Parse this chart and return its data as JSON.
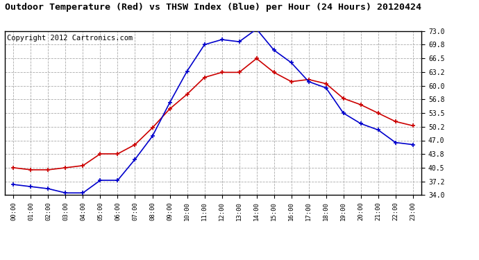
{
  "title": "Outdoor Temperature (Red) vs THSW Index (Blue) per Hour (24 Hours) 20120424",
  "copyright": "Copyright 2012 Cartronics.com",
  "hours": [
    "00:00",
    "01:00",
    "02:00",
    "03:00",
    "04:00",
    "05:00",
    "06:00",
    "07:00",
    "08:00",
    "09:00",
    "10:00",
    "11:00",
    "12:00",
    "13:00",
    "14:00",
    "15:00",
    "16:00",
    "17:00",
    "18:00",
    "19:00",
    "20:00",
    "21:00",
    "22:00",
    "23:00"
  ],
  "red_temp": [
    40.5,
    40.0,
    40.0,
    40.5,
    41.0,
    43.8,
    43.8,
    46.0,
    50.0,
    54.5,
    58.0,
    62.0,
    63.2,
    63.2,
    66.5,
    63.2,
    61.0,
    61.5,
    60.5,
    57.0,
    55.5,
    53.5,
    51.5,
    50.5
  ],
  "blue_thsw": [
    36.5,
    36.0,
    35.5,
    34.5,
    34.5,
    37.5,
    37.5,
    42.5,
    48.0,
    56.0,
    63.5,
    69.8,
    71.0,
    70.5,
    73.5,
    68.5,
    65.5,
    61.0,
    59.5,
    53.5,
    51.0,
    49.5,
    46.5,
    46.0
  ],
  "ylim": [
    34.0,
    73.0
  ],
  "yticks": [
    34.0,
    37.2,
    40.5,
    43.8,
    47.0,
    50.2,
    53.5,
    56.8,
    60.0,
    63.2,
    66.5,
    69.8,
    73.0
  ],
  "red_color": "#cc0000",
  "blue_color": "#0000cc",
  "bg_color": "#ffffff",
  "grid_color": "#aaaaaa",
  "title_fontsize": 9.5,
  "copyright_fontsize": 7.5
}
